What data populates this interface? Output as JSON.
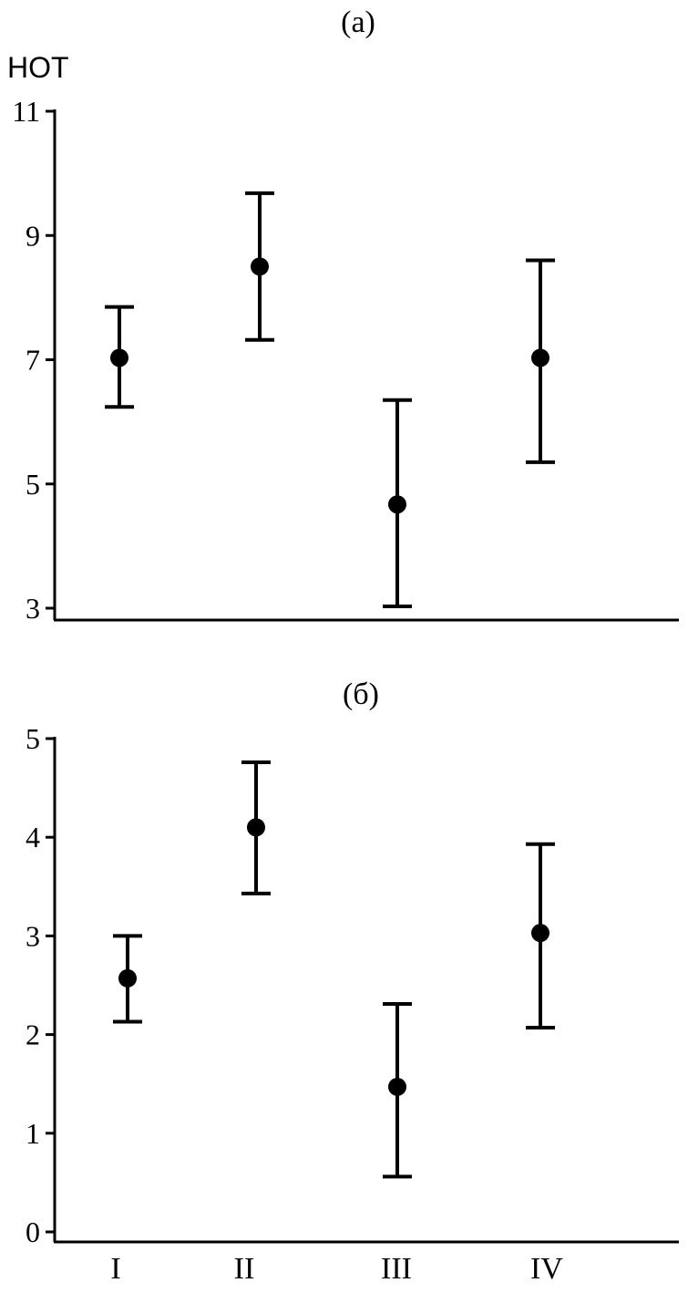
{
  "chart_data": [
    {
      "type": "scatter",
      "title": "(a)",
      "ylabel": "НОТ",
      "xlabel": "",
      "categories": [
        "I",
        "II",
        "III",
        "IV"
      ],
      "ylim": [
        3,
        11
      ],
      "yticks": [
        3,
        5,
        7,
        9,
        11
      ],
      "values": [
        7.03,
        8.5,
        4.67,
        7.03
      ],
      "error_upper": [
        7.85,
        9.68,
        6.35,
        8.6
      ],
      "error_lower": [
        6.24,
        7.32,
        3.03,
        5.35
      ],
      "grid": false,
      "show_x_tick_labels": false
    },
    {
      "type": "scatter",
      "title": "(б)",
      "ylabel": "",
      "xlabel": "",
      "categories": [
        "I",
        "II",
        "III",
        "IV"
      ],
      "ylim": [
        0,
        5
      ],
      "yticks": [
        0,
        1,
        2,
        3,
        4,
        5
      ],
      "values": [
        2.57,
        4.1,
        1.47,
        3.03
      ],
      "error_upper": [
        3.0,
        4.76,
        2.31,
        3.93
      ],
      "error_lower": [
        2.13,
        3.43,
        0.56,
        2.07
      ],
      "grid": false,
      "show_x_tick_labels": true
    }
  ],
  "colors": {
    "marks": "#000000",
    "background": "#ffffff"
  }
}
